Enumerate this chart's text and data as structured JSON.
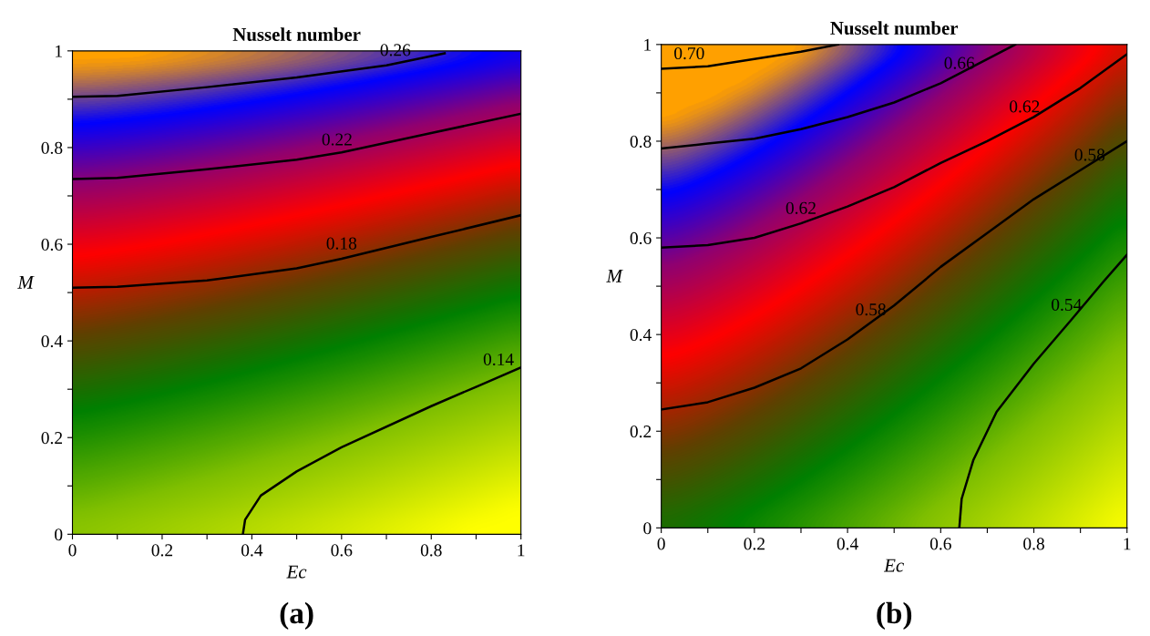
{
  "chart_data": [
    {
      "type": "line",
      "title": "Nusselt number",
      "xlabel": "Ec",
      "ylabel": "M",
      "xlim": [
        0,
        1
      ],
      "ylim": [
        0,
        1
      ],
      "xticks": [
        0,
        {
          "value": 0.1,
          "label": null
        },
        0.2,
        {
          "value": 0.3,
          "label": null
        },
        0.4,
        {
          "value": 0.5,
          "label": null
        },
        0.6,
        {
          "value": 0.7,
          "label": null
        },
        0.8,
        {
          "value": 0.9,
          "label": null
        },
        1
      ],
      "yticks": [
        0,
        {
          "value": 0.1,
          "label": null
        },
        0.2,
        {
          "value": 0.3,
          "label": null
        },
        0.4,
        {
          "value": 0.5,
          "label": null
        },
        0.6,
        {
          "value": 0.7,
          "label": null
        },
        0.8,
        {
          "value": 0.9,
          "label": null
        },
        1
      ],
      "grid": false,
      "legend": false,
      "marker": "none",
      "line_style": "solid",
      "series": [
        {
          "color": "#000000",
          "x": [
            0,
            0.1,
            0.3,
            0.5,
            0.7,
            0.83
          ],
          "values": [
            0.905,
            0.907,
            0.925,
            0.945,
            0.97,
            0.995
          ]
        },
        {
          "color": "#000000",
          "x": [
            0,
            0.1,
            0.3,
            0.5,
            0.6,
            0.8,
            1
          ],
          "values": [
            0.735,
            0.737,
            0.755,
            0.775,
            0.79,
            0.83,
            0.87
          ]
        },
        {
          "color": "#000000",
          "x": [
            0,
            0.1,
            0.3,
            0.5,
            0.6,
            0.8,
            1
          ],
          "values": [
            0.51,
            0.512,
            0.525,
            0.55,
            0.57,
            0.615,
            0.66
          ]
        },
        {
          "color": "#000000",
          "x": [
            0.38,
            0.385,
            0.42,
            0.5,
            0.6,
            0.8,
            0.9,
            1
          ],
          "values": [
            0,
            0.03,
            0.08,
            0.13,
            0.18,
            0.265,
            0.305,
            0.345
          ]
        }
      ],
      "annotations": [
        {
          "text": "0.26",
          "x": 0.72,
          "y": 0.97
        },
        {
          "text": "0.22",
          "x": 0.59,
          "y": 0.785
        },
        {
          "text": "0.18",
          "x": 0.6,
          "y": 0.57
        },
        {
          "text": "0.14",
          "x": 0.95,
          "y": 0.33
        },
        "(a)"
      ]
    },
    {
      "type": "line",
      "title": "Nusselt number",
      "xlabel": "Ec",
      "ylabel": "M",
      "xlim": [
        0,
        1
      ],
      "ylim": [
        0,
        1
      ],
      "xticks": [
        0,
        {
          "value": 0.1,
          "label": null
        },
        0.2,
        {
          "value": 0.3,
          "label": null
        },
        0.4,
        {
          "value": 0.5,
          "label": null
        },
        0.6,
        {
          "value": 0.7,
          "label": null
        },
        0.8,
        {
          "value": 0.9,
          "label": null
        },
        1
      ],
      "yticks": [
        0,
        {
          "value": 0.1,
          "label": null
        },
        0.2,
        {
          "value": 0.3,
          "label": null
        },
        0.4,
        {
          "value": 0.5,
          "label": null
        },
        0.6,
        {
          "value": 0.7,
          "label": null
        },
        0.8,
        {
          "value": 0.9,
          "label": null
        },
        1
      ],
      "grid": false,
      "legend": false,
      "marker": "none",
      "line_style": "solid",
      "series": [
        {
          "color": "#000000",
          "x": [
            0,
            0.1,
            0.2,
            0.3,
            0.38
          ],
          "values": [
            0.95,
            0.955,
            0.97,
            0.985,
            1.0
          ]
        },
        {
          "color": "#000000",
          "x": [
            0,
            0.1,
            0.2,
            0.3,
            0.4,
            0.5,
            0.6,
            0.7,
            0.76
          ],
          "values": [
            0.785,
            0.795,
            0.805,
            0.825,
            0.85,
            0.88,
            0.92,
            0.97,
            1.0
          ]
        },
        {
          "color": "#000000",
          "x": [
            0,
            0.1,
            0.2,
            0.3,
            0.4,
            0.5,
            0.6,
            0.7,
            0.8,
            0.9,
            1
          ],
          "values": [
            0.58,
            0.585,
            0.6,
            0.63,
            0.665,
            0.705,
            0.755,
            0.8,
            0.85,
            0.91,
            0.98
          ]
        },
        {
          "color": "#000000",
          "x": [
            0,
            0.1,
            0.2,
            0.3,
            0.4,
            0.5,
            0.6,
            0.7,
            0.8,
            0.9,
            1
          ],
          "values": [
            0.245,
            0.26,
            0.29,
            0.33,
            0.39,
            0.46,
            0.54,
            0.61,
            0.68,
            0.74,
            0.8
          ]
        },
        {
          "color": "#000000",
          "x": [
            0.64,
            0.645,
            0.67,
            0.72,
            0.8,
            0.88,
            0.95,
            1
          ],
          "values": [
            0,
            0.06,
            0.14,
            0.24,
            0.34,
            0.43,
            0.51,
            0.565
          ]
        }
      ],
      "annotations": [
        {
          "text": "0.70",
          "x": 0.06,
          "y": 0.95
        },
        {
          "text": "0.66",
          "x": 0.64,
          "y": 0.93
        },
        {
          "text": "0.62",
          "x": 0.78,
          "y": 0.84
        },
        {
          "text": "0.62",
          "x": 0.3,
          "y": 0.63
        },
        {
          "text": "0.58",
          "x": 0.92,
          "y": 0.74
        },
        {
          "text": "0.58",
          "x": 0.45,
          "y": 0.42
        },
        {
          "text": "0.54",
          "x": 0.87,
          "y": 0.43
        },
        "(b)"
      ]
    }
  ]
}
